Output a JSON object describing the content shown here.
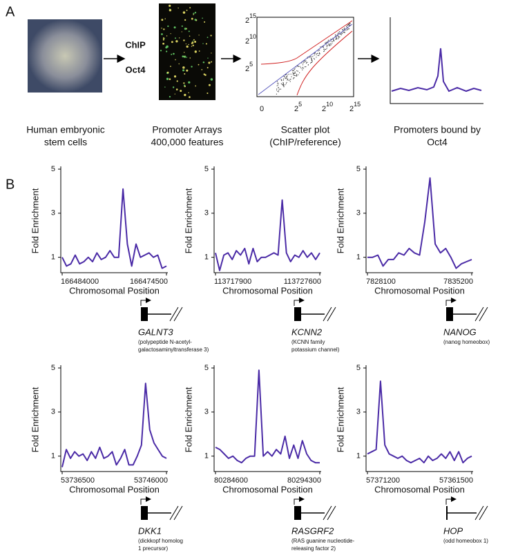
{
  "panel_a": {
    "label": "A",
    "arrow_top": "ChIP",
    "arrow_bottom": "Oct4",
    "captions": [
      [
        "Human embryonic",
        "stem cells"
      ],
      [
        "Promoter Arrays",
        "400,000 features"
      ],
      [
        "Scatter plot",
        "(ChIP/reference)"
      ],
      [
        "Promoters bound by",
        "Oct4"
      ]
    ],
    "scatter_xticks": [
      {
        "base": "0",
        "exp": ""
      },
      {
        "base": "2",
        "exp": "5"
      },
      {
        "base": "2",
        "exp": "10"
      },
      {
        "base": "2",
        "exp": "15"
      }
    ],
    "scatter_yticks": [
      {
        "base": "2",
        "exp": "5"
      },
      {
        "base": "2",
        "exp": "10"
      },
      {
        "base": "2",
        "exp": "15"
      }
    ]
  },
  "panel_b_label": "B",
  "chart_data": [
    {
      "type": "line",
      "gene": "GALNT3",
      "description": [
        "(polypeptide N-acetyl-",
        "galactosaminyltransferase 3)"
      ],
      "y_label": "Fold Enrichment",
      "x_label": "Chromosomal Position",
      "color": "#4a2aa6",
      "ylim": [
        0.3,
        5
      ],
      "yticks": [
        1,
        3,
        5
      ],
      "categories": [
        "166484000",
        null,
        null,
        null,
        null,
        null,
        null,
        null,
        null,
        null,
        null,
        null,
        null,
        null,
        null,
        null,
        null,
        null,
        null,
        null,
        null,
        null,
        null,
        null,
        "166474500"
      ],
      "values": [
        1,
        0.6,
        0.7,
        1.1,
        0.7,
        0.8,
        1,
        0.8,
        1.2,
        0.9,
        1,
        1.3,
        1,
        1,
        4.1,
        1.6,
        0.6,
        1.6,
        1,
        1.1,
        1.2,
        1,
        1.1,
        0.5,
        0.6
      ]
    },
    {
      "type": "line",
      "gene": "KCNN2",
      "description": [
        "(KCNN family",
        "potassium channel)"
      ],
      "y_label": "Fold Enrichment",
      "x_label": "Chromosomal Position",
      "color": "#4a2aa6",
      "ylim": [
        0.3,
        5
      ],
      "yticks": [
        1,
        3,
        5
      ],
      "categories": [
        "113717900",
        null,
        null,
        null,
        null,
        null,
        null,
        null,
        null,
        null,
        null,
        null,
        null,
        null,
        null,
        null,
        null,
        null,
        null,
        null,
        null,
        null,
        null,
        null,
        null,
        "113727600"
      ],
      "values": [
        1.2,
        0.4,
        1.1,
        1.2,
        0.9,
        1.3,
        1.1,
        1.4,
        0.7,
        1.4,
        0.8,
        1,
        1,
        1.1,
        1.2,
        1.1,
        3.6,
        1.2,
        0.8,
        1.1,
        1,
        1.3,
        1,
        1.2,
        0.9,
        1.2
      ]
    },
    {
      "type": "line",
      "gene": "NANOG",
      "description": [
        "(nanog homeobox)"
      ],
      "y_label": "Fold Enrichment",
      "x_label": "Chromosomal Position",
      "color": "#4a2aa6",
      "ylim": [
        0.3,
        5
      ],
      "yticks": [
        1,
        3,
        5
      ],
      "categories": [
        "7828100",
        null,
        null,
        null,
        null,
        null,
        null,
        null,
        null,
        null,
        null,
        null,
        null,
        null,
        null,
        null,
        null,
        null,
        null,
        null,
        "7835200"
      ],
      "values": [
        1,
        1,
        1.1,
        0.6,
        0.9,
        0.9,
        1.2,
        1.1,
        1.4,
        1.2,
        1.1,
        2.6,
        4.6,
        1.6,
        1.2,
        1.4,
        1,
        0.5,
        0.7,
        0.8,
        0.9
      ]
    },
    {
      "type": "line",
      "gene": "DKK1",
      "description": [
        "(dickkopf homolog",
        "1 precursor)"
      ],
      "y_label": "Fold Enrichment",
      "x_label": "Chromosomal Position",
      "color": "#4a2aa6",
      "ylim": [
        0.3,
        5
      ],
      "yticks": [
        1,
        3,
        5
      ],
      "categories": [
        "53736500",
        null,
        null,
        null,
        null,
        null,
        null,
        null,
        null,
        null,
        null,
        null,
        null,
        null,
        null,
        null,
        null,
        null,
        null,
        null,
        null,
        null,
        null,
        null,
        null,
        "53746000"
      ],
      "values": [
        0.5,
        1.3,
        0.9,
        1.2,
        1,
        1.1,
        0.8,
        1.2,
        0.9,
        1.4,
        0.9,
        1,
        1.2,
        0.6,
        0.9,
        1.3,
        0.6,
        0.6,
        1,
        1.5,
        4.3,
        2.2,
        1.6,
        1.3,
        1,
        0.9
      ]
    },
    {
      "type": "line",
      "gene": "RASGRF2",
      "description": [
        "(RAS guanine nucleotide-",
        "releasing factor 2)"
      ],
      "y_label": "Fold Enrichment",
      "x_label": "Chromosomal Position",
      "color": "#4a2aa6",
      "ylim": [
        0.3,
        5
      ],
      "yticks": [
        1,
        3,
        5
      ],
      "categories": [
        "80284600",
        null,
        null,
        null,
        null,
        null,
        null,
        null,
        null,
        null,
        null,
        null,
        null,
        null,
        null,
        null,
        null,
        null,
        null,
        null,
        null,
        null,
        null,
        null,
        "80294300"
      ],
      "values": [
        1.4,
        1.3,
        1.1,
        0.9,
        1,
        0.8,
        0.7,
        0.9,
        1,
        1,
        4.9,
        1,
        1.2,
        1,
        1.3,
        1.1,
        1.9,
        0.9,
        1.5,
        0.9,
        1.7,
        1.1,
        0.8,
        0.7,
        0.7
      ]
    },
    {
      "type": "line",
      "gene": "HOP",
      "description": [
        "(odd homeobox 1)"
      ],
      "y_label": "Fold Enrichment",
      "x_label": "Chromosomal Position",
      "color": "#4a2aa6",
      "ylim": [
        0.3,
        5
      ],
      "yticks": [
        1,
        3,
        5
      ],
      "categories": [
        "57371200",
        null,
        null,
        null,
        null,
        null,
        null,
        null,
        null,
        null,
        null,
        null,
        null,
        null,
        null,
        null,
        null,
        null,
        null,
        null,
        null,
        null,
        null,
        null,
        "57361500"
      ],
      "values": [
        1.1,
        1.2,
        1.3,
        4.4,
        1.5,
        1.1,
        1,
        0.9,
        1,
        0.8,
        0.7,
        0.8,
        0.9,
        0.7,
        1,
        0.8,
        0.9,
        1.1,
        0.9,
        1.2,
        0.8,
        1.2,
        0.7,
        0.9,
        1
      ]
    }
  ]
}
